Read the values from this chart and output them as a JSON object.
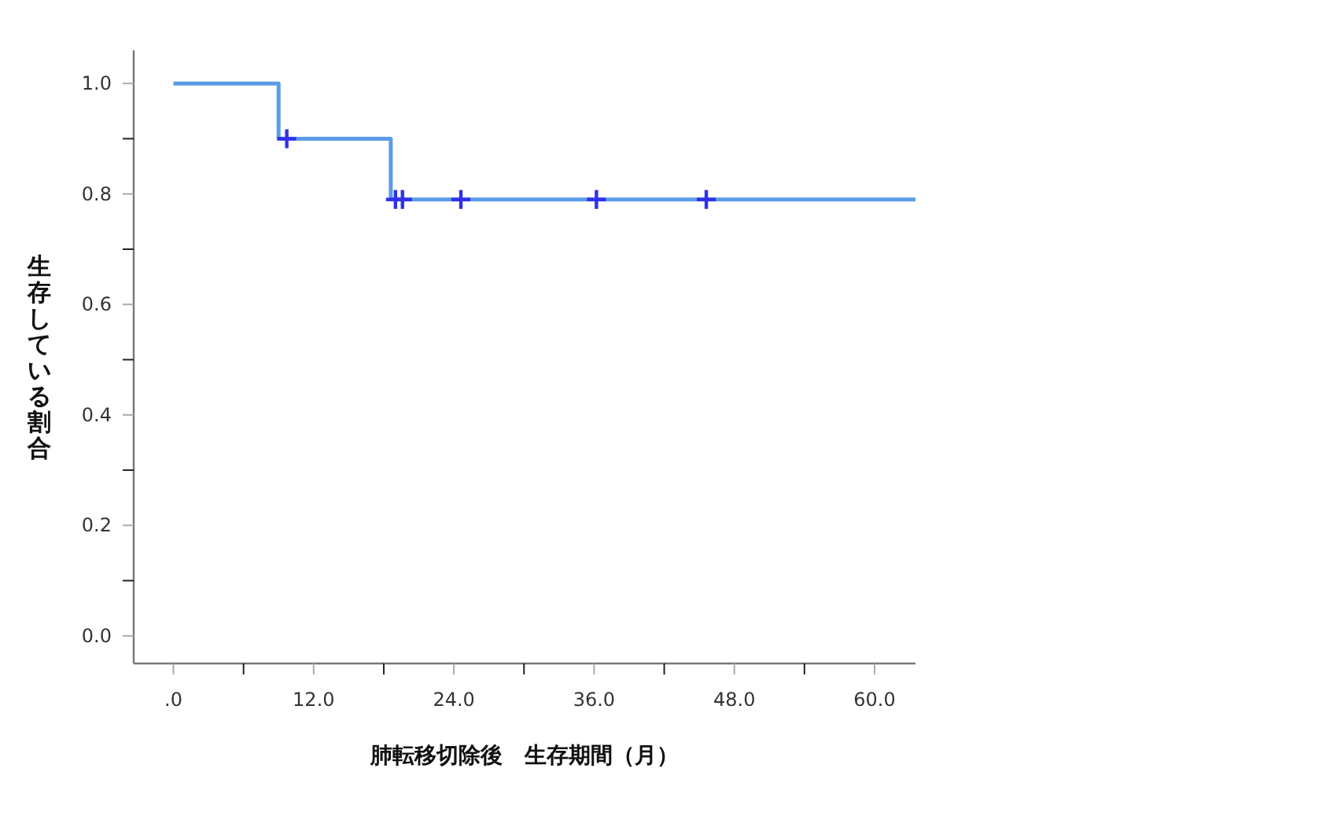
{
  "chart_data": {
    "type": "step",
    "xlabel": "肺転移切除後　生存期間（月）",
    "ylabel": "生存している割合",
    "xlim": [
      -3.4,
      63.5
    ],
    "ylim": [
      -0.05,
      1.06
    ],
    "xticks": [
      {
        "value": 0,
        "label": ".0"
      },
      {
        "value": 6,
        "label": null
      },
      {
        "value": 12,
        "label": "12.0"
      },
      {
        "value": 18,
        "label": null
      },
      {
        "value": 24,
        "label": "24.0"
      },
      {
        "value": 30,
        "label": null
      },
      {
        "value": 36,
        "label": "36.0"
      },
      {
        "value": 42,
        "label": null
      },
      {
        "value": 48,
        "label": "48.0"
      },
      {
        "value": 54,
        "label": null
      },
      {
        "value": 60,
        "label": "60.0"
      }
    ],
    "yticks": [
      {
        "value": 0,
        "label": "0.0"
      },
      {
        "value": 0.1,
        "label": null
      },
      {
        "value": 0.2,
        "label": "0.2"
      },
      {
        "value": 0.3,
        "label": null
      },
      {
        "value": 0.4,
        "label": "0.4"
      },
      {
        "value": 0.5,
        "label": null
      },
      {
        "value": 0.6,
        "label": "0.6"
      },
      {
        "value": 0.7,
        "label": null
      },
      {
        "value": 0.8,
        "label": "0.8"
      },
      {
        "value": 0.9,
        "label": null
      },
      {
        "value": 1,
        "label": "1.0"
      }
    ],
    "series": [
      {
        "type": "step",
        "color": "#5b9be6",
        "x": [
          0,
          9.0,
          18.6,
          63.5
        ],
        "values": [
          1.0,
          0.9,
          0.79,
          0.79
        ]
      },
      {
        "type": "scatter",
        "marker": "cross",
        "color": "#3030ee",
        "x": [
          9.7,
          19.0,
          19.6,
          24.6,
          36.2,
          45.6
        ],
        "values": [
          0.9,
          0.79,
          0.79,
          0.79,
          0.79,
          0.79
        ]
      }
    ]
  }
}
